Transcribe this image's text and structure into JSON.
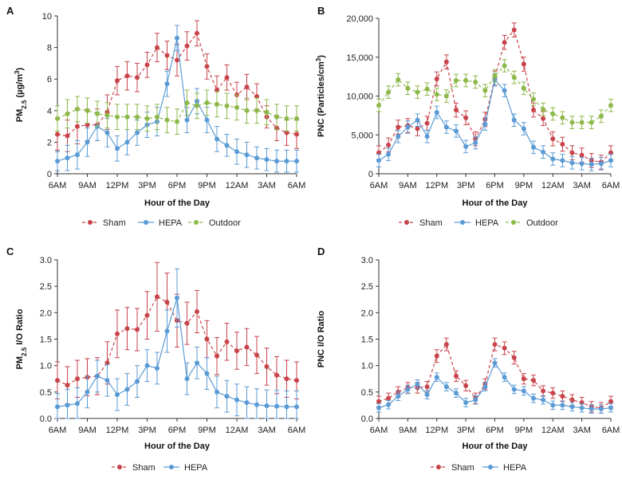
{
  "chart_data": [
    {
      "panel": "A",
      "type": "line",
      "ylabel": "PM2.5 (µg/m3)",
      "xlabel": "Hour of the Day",
      "x_tick_labels": [
        "6AM",
        "9AM",
        "12PM",
        "3PM",
        "6PM",
        "9PM",
        "12AM",
        "3AM",
        "6AM"
      ],
      "y_tick_labels": [
        "0",
        "2",
        "4",
        "6",
        "8",
        "10"
      ],
      "ylim": [
        0,
        10
      ],
      "x": [
        0,
        1,
        2,
        3,
        4,
        5,
        6,
        7,
        8,
        9,
        10,
        11,
        12,
        13,
        14,
        15,
        16,
        17,
        18,
        19,
        20,
        21,
        22,
        23,
        24
      ],
      "series": [
        {
          "name": "Sham",
          "color": "#c9434b",
          "dash": true,
          "values": [
            2.5,
            2.4,
            3.0,
            3.1,
            3.1,
            3.9,
            5.9,
            6.2,
            6.1,
            6.9,
            8.0,
            7.5,
            7.2,
            8.1,
            8.9,
            6.8,
            5.3,
            6.1,
            5.0,
            5.5,
            4.9,
            3.6,
            2.9,
            2.6,
            2.5
          ],
          "errors": [
            1.0,
            1.0,
            1.1,
            1.0,
            1.0,
            1.1,
            0.9,
            0.9,
            0.9,
            0.8,
            0.9,
            0.9,
            1.0,
            0.9,
            0.8,
            0.8,
            0.9,
            0.8,
            0.8,
            0.8,
            0.8,
            0.7,
            0.8,
            0.8,
            0.9
          ]
        },
        {
          "name": "HEPA",
          "color": "#5b9bd5",
          "dash": false,
          "values": [
            0.8,
            1.0,
            1.2,
            2.0,
            3.0,
            2.6,
            1.6,
            2.0,
            2.6,
            3.1,
            3.3,
            5.7,
            8.6,
            3.4,
            4.6,
            3.4,
            2.2,
            1.8,
            1.4,
            1.2,
            1.0,
            0.9,
            0.8,
            0.8,
            0.8
          ],
          "errors": [
            0.6,
            0.8,
            0.9,
            0.9,
            0.9,
            0.9,
            0.8,
            0.8,
            0.8,
            0.8,
            0.9,
            0.8,
            0.8,
            0.8,
            0.8,
            0.8,
            0.8,
            0.7,
            0.8,
            0.8,
            0.7,
            0.7,
            0.7,
            0.7,
            0.7
          ]
        },
        {
          "name": "Outdoor",
          "color": "#8db84a",
          "dash": true,
          "values": [
            3.5,
            3.8,
            4.1,
            4.0,
            3.8,
            3.7,
            3.6,
            3.6,
            3.6,
            3.5,
            3.6,
            3.4,
            3.3,
            4.5,
            4.3,
            4.5,
            4.4,
            4.3,
            4.2,
            4.0,
            4.0,
            3.9,
            3.6,
            3.5,
            3.5
          ],
          "errors": [
            0.8,
            0.9,
            0.8,
            0.8,
            0.8,
            0.8,
            0.8,
            0.8,
            0.8,
            0.8,
            0.8,
            0.8,
            0.8,
            0.8,
            0.8,
            0.8,
            0.8,
            0.8,
            0.8,
            0.8,
            0.8,
            0.8,
            0.8,
            0.8,
            0.8
          ]
        }
      ]
    },
    {
      "panel": "B",
      "type": "line",
      "ylabel": "PNC (Particles/cm3)",
      "xlabel": "Hour of the Day",
      "x_tick_labels": [
        "6AM",
        "9AM",
        "12PM",
        "3PM",
        "6PM",
        "9PM",
        "12AM",
        "3AM",
        "6AM"
      ],
      "y_tick_labels": [
        "0",
        "5,000",
        "10,000",
        "15,000",
        "20,000"
      ],
      "ylim": [
        0,
        20000
      ],
      "x": [
        0,
        1,
        2,
        3,
        4,
        5,
        6,
        7,
        8,
        9,
        10,
        11,
        12,
        13,
        14,
        15,
        16,
        17,
        18,
        19,
        20,
        21,
        22,
        23,
        24
      ],
      "series": [
        {
          "name": "Sham",
          "color": "#c9434b",
          "dash": true,
          "values": [
            2700,
            3700,
            6000,
            6200,
            5800,
            6500,
            12200,
            14400,
            8200,
            7200,
            4500,
            7000,
            12300,
            16900,
            18500,
            14100,
            8200,
            7100,
            4500,
            3800,
            2700,
            2400,
            1700,
            1500,
            2700
          ],
          "errors": [
            900,
            900,
            900,
            900,
            900,
            900,
            900,
            900,
            900,
            900,
            900,
            900,
            900,
            900,
            900,
            900,
            900,
            900,
            900,
            900,
            900,
            900,
            900,
            900,
            900
          ]
        },
        {
          "name": "HEPA",
          "color": "#5b9bd5",
          "dash": false,
          "values": [
            1700,
            2500,
            4800,
            6000,
            6900,
            4800,
            7900,
            6000,
            5500,
            3500,
            4000,
            6400,
            12100,
            10700,
            6900,
            5800,
            3400,
            2800,
            1900,
            1700,
            1400,
            1300,
            1200,
            1300,
            1700
          ],
          "errors": [
            800,
            800,
            800,
            800,
            800,
            800,
            800,
            800,
            800,
            800,
            800,
            800,
            800,
            800,
            800,
            800,
            800,
            800,
            800,
            800,
            800,
            800,
            800,
            800,
            800
          ]
        },
        {
          "name": "Outdoor",
          "color": "#8db84a",
          "dash": true,
          "values": [
            8800,
            10500,
            12100,
            11000,
            10500,
            10900,
            10200,
            10000,
            12000,
            12000,
            11800,
            10700,
            12600,
            13900,
            12400,
            11000,
            9600,
            8300,
            7700,
            7200,
            6600,
            6600,
            6600,
            7400,
            8800
          ],
          "errors": [
            800,
            800,
            800,
            800,
            800,
            800,
            800,
            800,
            800,
            800,
            800,
            800,
            800,
            800,
            800,
            800,
            800,
            800,
            800,
            800,
            800,
            800,
            800,
            800,
            800
          ]
        }
      ]
    },
    {
      "panel": "C",
      "type": "line",
      "ylabel": "PM2.5 I/O Ratio",
      "xlabel": "Hour of the Day",
      "x_tick_labels": [
        "6AM",
        "9AM",
        "12PM",
        "3PM",
        "6PM",
        "9PM",
        "12AM",
        "3AM",
        "6AM"
      ],
      "y_tick_labels": [
        "0.0",
        "0.5",
        "1.0",
        "1.5",
        "2.0",
        "2.5",
        "3.0"
      ],
      "ylim": [
        0,
        3
      ],
      "x": [
        0,
        1,
        2,
        3,
        4,
        5,
        6,
        7,
        8,
        9,
        10,
        11,
        12,
        13,
        14,
        15,
        16,
        17,
        18,
        19,
        20,
        21,
        22,
        23,
        24
      ],
      "series": [
        {
          "name": "Sham",
          "color": "#c9434b",
          "dash": true,
          "values": [
            0.72,
            0.63,
            0.75,
            0.78,
            0.8,
            1.05,
            1.6,
            1.7,
            1.68,
            1.95,
            2.3,
            2.2,
            1.85,
            1.8,
            2.02,
            1.5,
            1.18,
            1.45,
            1.28,
            1.35,
            1.2,
            0.98,
            0.82,
            0.75,
            0.72
          ],
          "errors": [
            0.35,
            0.35,
            0.35,
            0.35,
            0.35,
            0.4,
            0.45,
            0.4,
            0.4,
            0.45,
            0.65,
            0.55,
            0.5,
            0.4,
            0.4,
            0.35,
            0.35,
            0.35,
            0.35,
            0.35,
            0.35,
            0.35,
            0.35,
            0.35,
            0.35
          ]
        },
        {
          "name": "HEPA",
          "color": "#5b9bd5",
          "dash": false,
          "values": [
            0.22,
            0.25,
            0.28,
            0.5,
            0.8,
            0.72,
            0.45,
            0.55,
            0.7,
            1.0,
            0.95,
            1.65,
            2.28,
            0.75,
            1.05,
            0.85,
            0.5,
            0.42,
            0.35,
            0.3,
            0.26,
            0.24,
            0.23,
            0.22,
            0.22
          ],
          "errors": [
            0.25,
            0.3,
            0.3,
            0.3,
            0.3,
            0.3,
            0.3,
            0.3,
            0.3,
            0.3,
            0.3,
            0.4,
            0.55,
            0.3,
            0.3,
            0.3,
            0.3,
            0.3,
            0.3,
            0.3,
            0.3,
            0.3,
            0.3,
            0.3,
            0.3
          ]
        }
      ]
    },
    {
      "panel": "D",
      "type": "line",
      "ylabel": "PNC I/O Ratio",
      "xlabel": "Hour of the Day",
      "x_tick_labels": [
        "6AM",
        "9AM",
        "12PM",
        "3PM",
        "6PM",
        "9PM",
        "12AM",
        "3AM",
        "6AM"
      ],
      "y_tick_labels": [
        "0.0",
        "0.5",
        "1.0",
        "1.5",
        "2.0",
        "2.5",
        "3.0"
      ],
      "ylim": [
        0,
        3
      ],
      "x": [
        0,
        1,
        2,
        3,
        4,
        5,
        6,
        7,
        8,
        9,
        10,
        11,
        12,
        13,
        14,
        15,
        16,
        17,
        18,
        19,
        20,
        21,
        22,
        23,
        24
      ],
      "series": [
        {
          "name": "Sham",
          "color": "#c9434b",
          "dash": true,
          "values": [
            0.32,
            0.38,
            0.5,
            0.58,
            0.58,
            0.6,
            1.18,
            1.4,
            0.8,
            0.62,
            0.38,
            0.65,
            1.4,
            1.33,
            1.15,
            0.75,
            0.72,
            0.52,
            0.48,
            0.42,
            0.35,
            0.3,
            0.22,
            0.2,
            0.32
          ],
          "errors": [
            0.1,
            0.1,
            0.1,
            0.1,
            0.1,
            0.1,
            0.12,
            0.12,
            0.1,
            0.1,
            0.1,
            0.1,
            0.12,
            0.12,
            0.12,
            0.1,
            0.1,
            0.1,
            0.1,
            0.1,
            0.1,
            0.1,
            0.1,
            0.1,
            0.1
          ]
        },
        {
          "name": "HEPA",
          "color": "#5b9bd5",
          "dash": false,
          "values": [
            0.2,
            0.26,
            0.42,
            0.55,
            0.65,
            0.45,
            0.78,
            0.6,
            0.48,
            0.3,
            0.35,
            0.6,
            1.05,
            0.78,
            0.55,
            0.52,
            0.38,
            0.35,
            0.25,
            0.25,
            0.22,
            0.2,
            0.18,
            0.18,
            0.2
          ],
          "errors": [
            0.08,
            0.08,
            0.08,
            0.08,
            0.08,
            0.08,
            0.08,
            0.08,
            0.08,
            0.08,
            0.08,
            0.08,
            0.08,
            0.08,
            0.08,
            0.08,
            0.08,
            0.08,
            0.08,
            0.08,
            0.08,
            0.08,
            0.08,
            0.08,
            0.08
          ]
        }
      ]
    }
  ]
}
